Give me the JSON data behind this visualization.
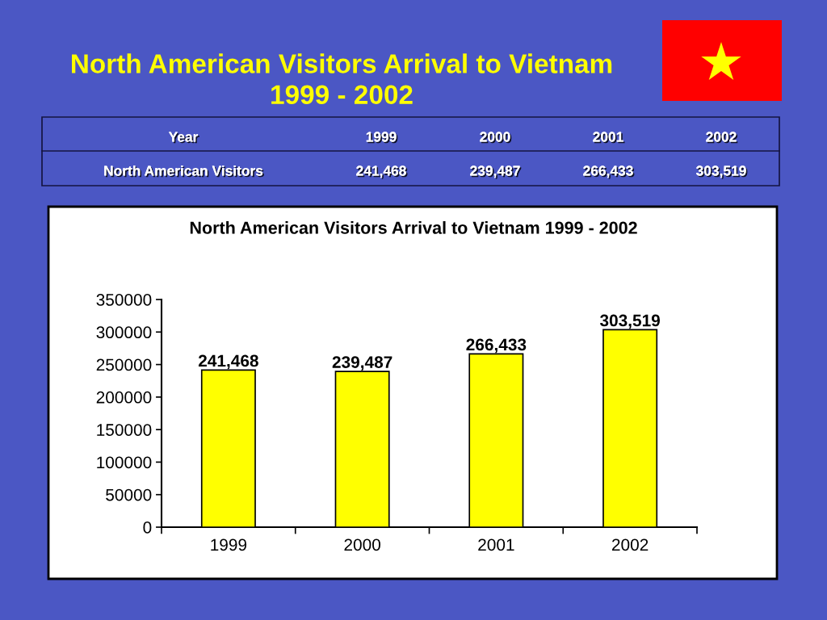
{
  "chart_data": {
    "type": "bar",
    "title": "North American Visitors Arrival to Vietnam\n1999 - 2002",
    "subtitle": "North American Visitors Arrival to Vietnam 1999 - 2002",
    "categories": [
      "1999",
      "2000",
      "2001",
      "2002"
    ],
    "values": [
      241468,
      239487,
      266433,
      303519
    ],
    "value_labels": [
      "241,468",
      "239,487",
      "266,433",
      "303,519"
    ],
    "color": "#ffff00",
    "ylim": [
      0,
      350000
    ],
    "yticks": [
      0,
      50000,
      100000,
      150000,
      200000,
      250000,
      300000,
      350000
    ],
    "grid": false,
    "annotations": [
      "Year",
      "North American Visitors"
    ]
  }
}
